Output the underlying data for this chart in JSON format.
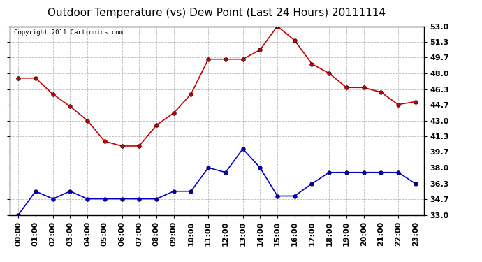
{
  "title": "Outdoor Temperature (vs) Dew Point (Last 24 Hours) 20111114",
  "copyright": "Copyright 2011 Cartronics.com",
  "x_labels": [
    "00:00",
    "01:00",
    "02:00",
    "03:00",
    "04:00",
    "05:00",
    "06:00",
    "07:00",
    "08:00",
    "09:00",
    "10:00",
    "11:00",
    "12:00",
    "13:00",
    "14:00",
    "15:00",
    "16:00",
    "17:00",
    "18:00",
    "19:00",
    "20:00",
    "21:00",
    "22:00",
    "23:00"
  ],
  "temp_values": [
    47.5,
    47.5,
    45.8,
    44.5,
    43.0,
    40.8,
    40.3,
    40.3,
    42.5,
    43.8,
    45.8,
    49.5,
    49.5,
    49.5,
    50.5,
    53.0,
    51.5,
    49.0,
    48.0,
    46.5,
    46.5,
    46.0,
    44.7,
    45.0
  ],
  "dew_values": [
    33.0,
    35.5,
    34.7,
    35.5,
    34.7,
    34.7,
    34.7,
    34.7,
    34.7,
    35.5,
    35.5,
    38.0,
    37.5,
    40.0,
    38.0,
    35.0,
    35.0,
    36.3,
    37.5,
    37.5,
    37.5,
    37.5,
    37.5,
    36.3
  ],
  "temp_color": "#cc0000",
  "dew_color": "#0000cc",
  "bg_color": "#ffffff",
  "plot_bg_color": "#ffffff",
  "grid_color": "#aaaaaa",
  "ylim_min": 33.0,
  "ylim_max": 53.0,
  "ytick_labels": [
    "33.0",
    "34.7",
    "36.3",
    "38.0",
    "39.7",
    "41.3",
    "43.0",
    "44.7",
    "46.3",
    "48.0",
    "49.7",
    "51.3",
    "53.0"
  ],
  "ytick_values": [
    33.0,
    34.7,
    36.3,
    38.0,
    39.7,
    41.3,
    43.0,
    44.7,
    46.3,
    48.0,
    49.7,
    51.3,
    53.0
  ],
  "title_fontsize": 11,
  "copyright_fontsize": 6.5,
  "tick_fontsize": 8,
  "marker_size": 4
}
